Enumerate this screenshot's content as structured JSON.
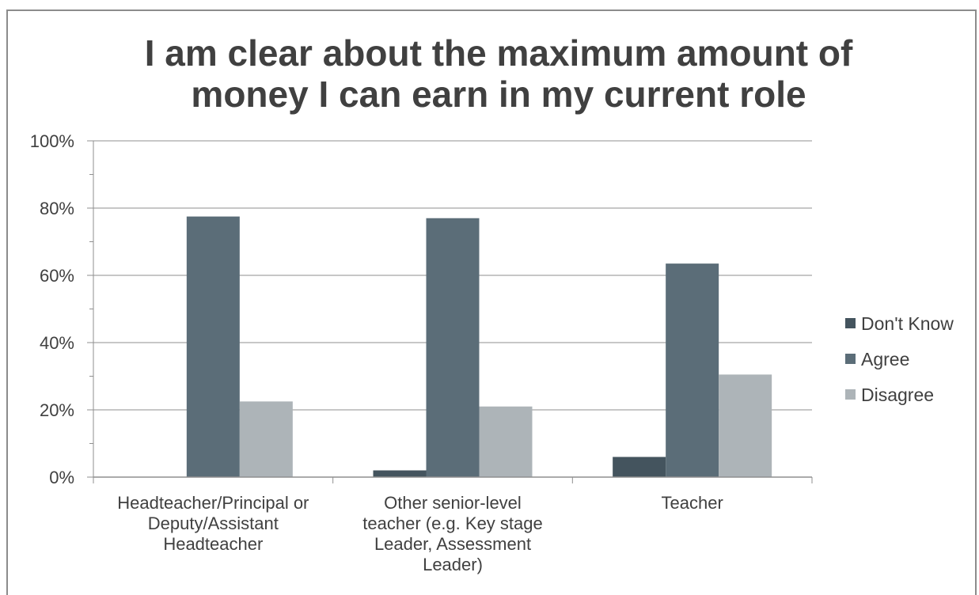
{
  "chart_data": {
    "type": "bar",
    "title": "I am clear about the maximum amount of money I can earn in my current role",
    "title_lines": [
      "I am clear about the maximum amount of",
      "money I can earn in my current role"
    ],
    "categories": [
      "Headteacher/Principal or Deputy/Assistant Headteacher",
      "Other senior-level teacher (e.g. Key stage Leader, Assessment Leader)",
      "Teacher"
    ],
    "category_lines": [
      [
        "Headteacher/Principal or",
        "Deputy/Assistant",
        "Headteacher"
      ],
      [
        "Other senior-level",
        "teacher (e.g. Key stage",
        "Leader, Assessment",
        "Leader)"
      ],
      [
        "Teacher"
      ]
    ],
    "series": [
      {
        "name": "Don't Know",
        "values": [
          0,
          2,
          6
        ],
        "color": "#44545e"
      },
      {
        "name": "Agree",
        "values": [
          77.5,
          77,
          63.5
        ],
        "color": "#5b6d78"
      },
      {
        "name": "Disagree",
        "values": [
          22.5,
          21,
          30.5
        ],
        "color": "#adb4b8"
      }
    ],
    "y_ticks": [
      "0%",
      "20%",
      "40%",
      "60%",
      "80%",
      "100%"
    ],
    "ylim": [
      0,
      100
    ],
    "xlabel": "",
    "ylabel": "",
    "grid": true,
    "legend_position": "right"
  }
}
